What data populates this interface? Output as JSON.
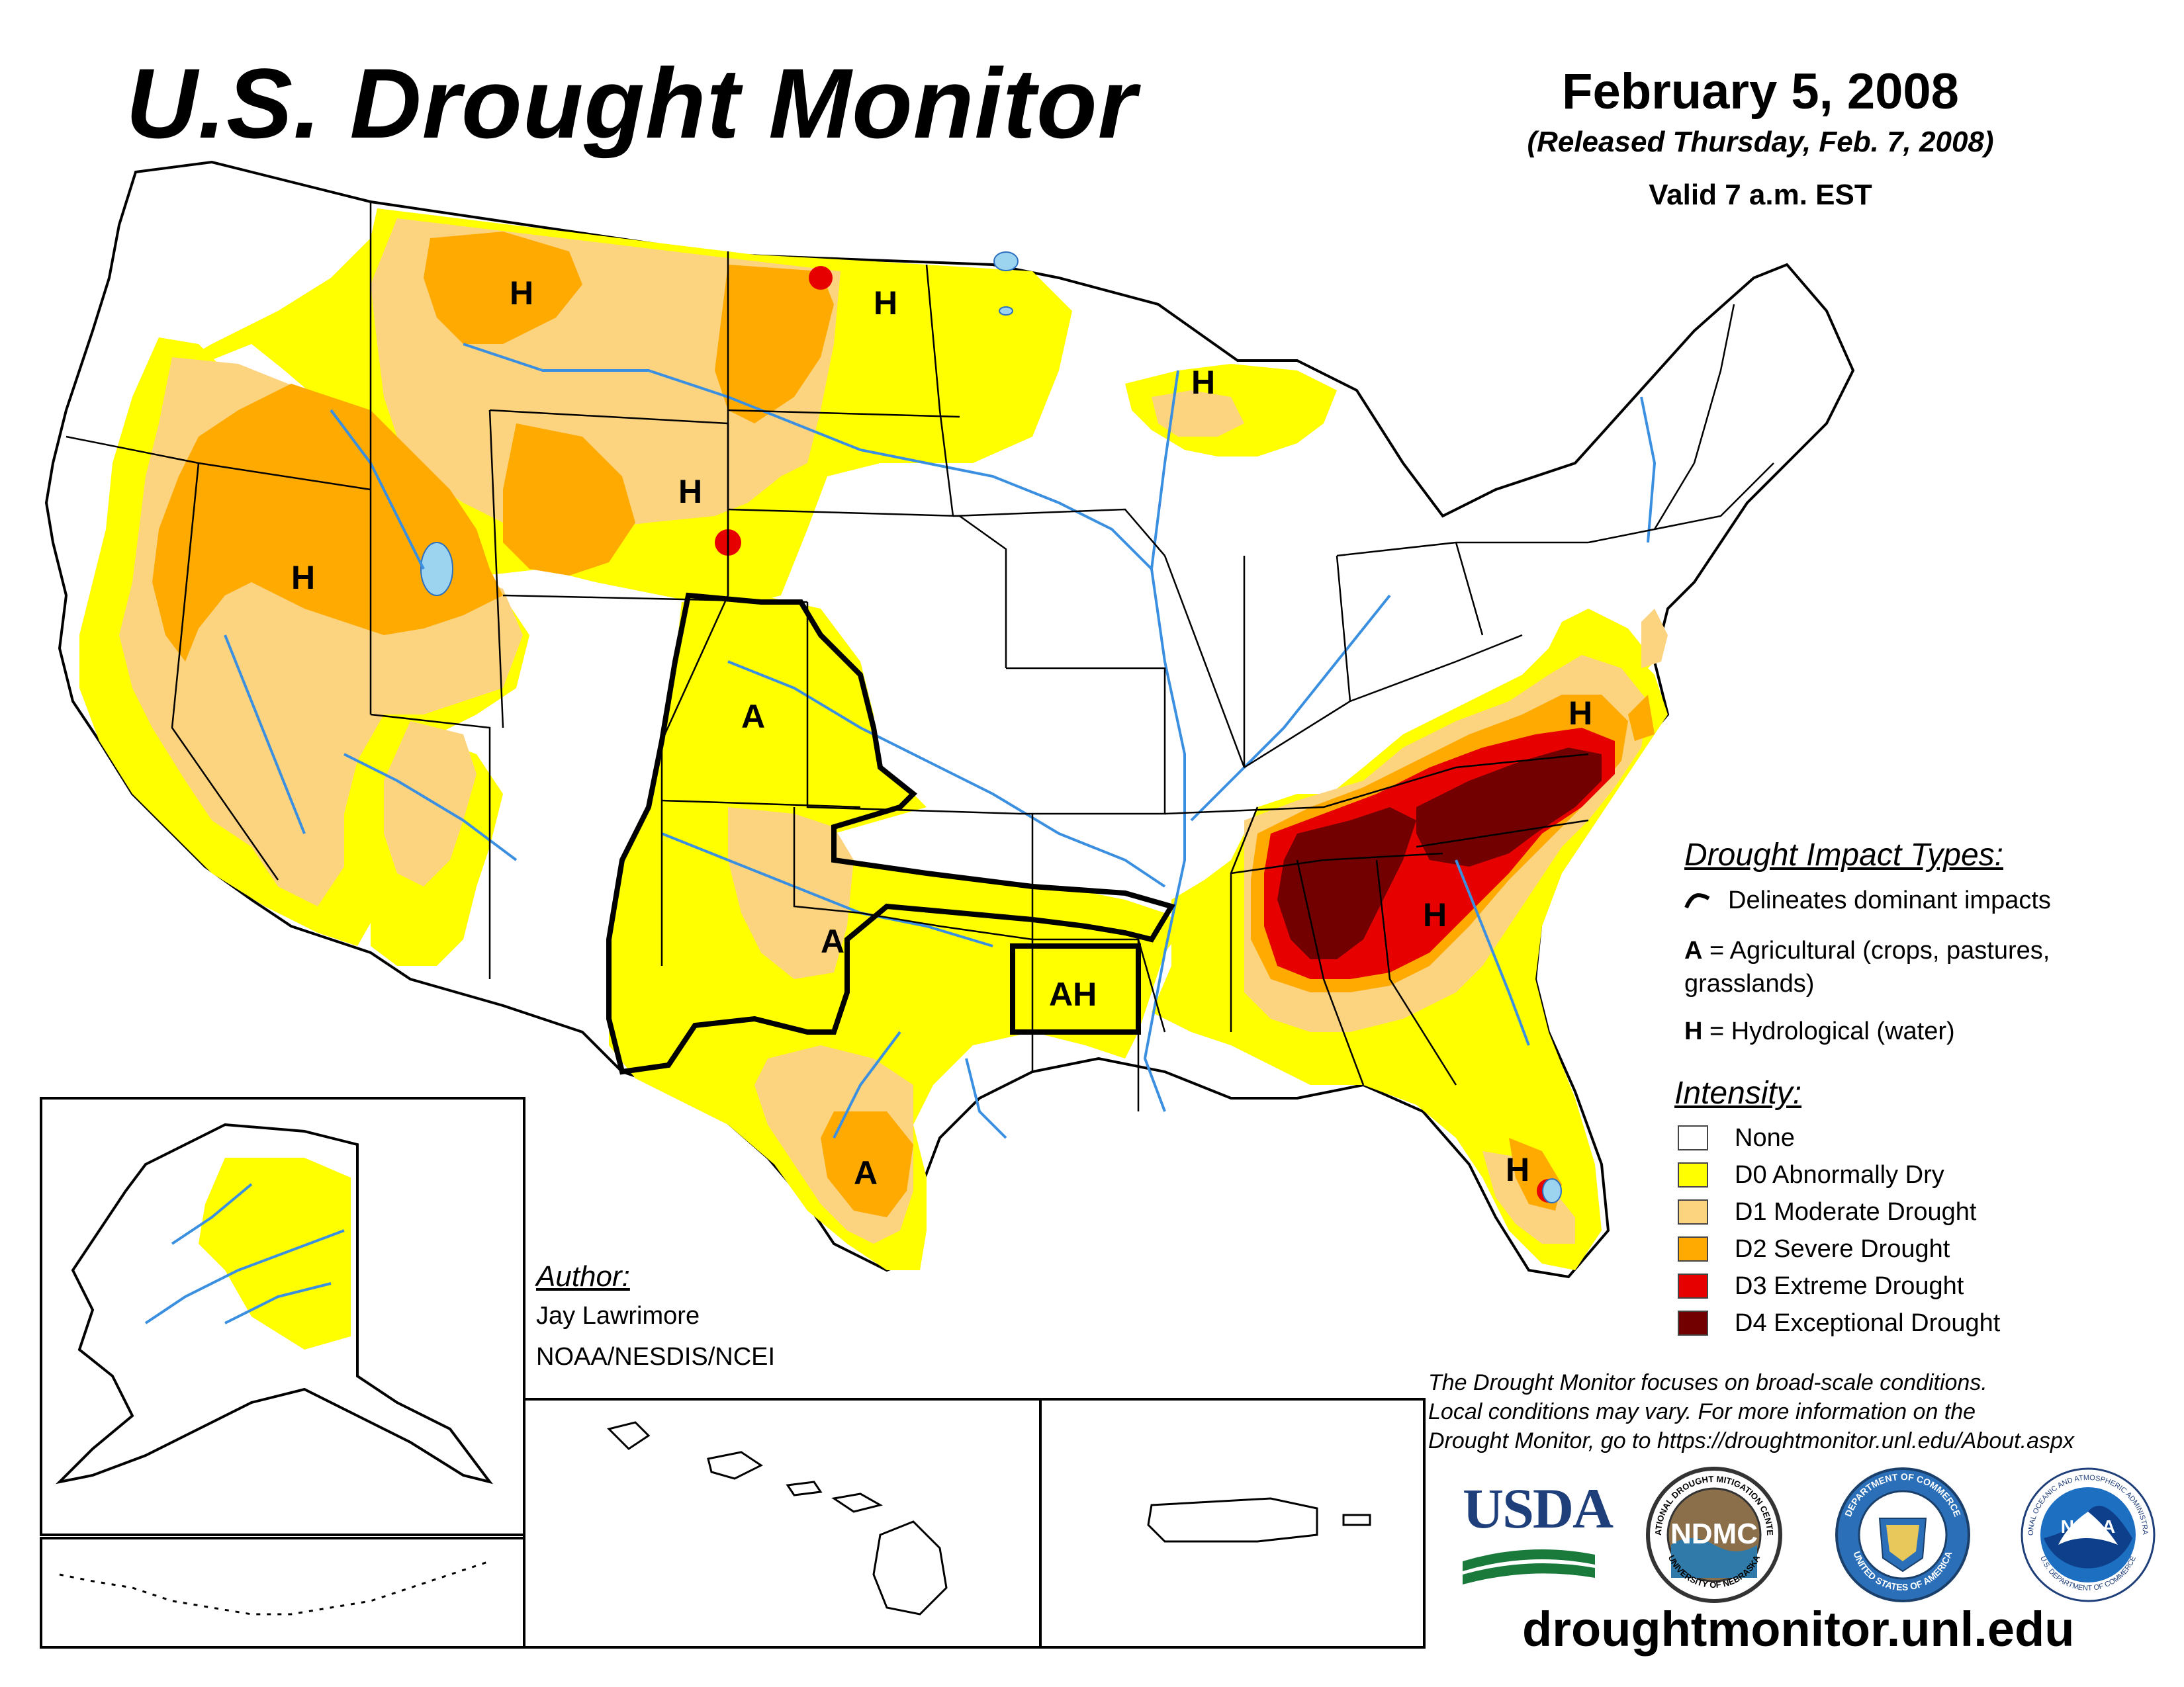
{
  "header": {
    "title": "U.S. Drought Monitor",
    "date": "February 5, 2008",
    "released": "(Released Thursday, Feb. 7, 2008)",
    "valid": "Valid 7 a.m. EST"
  },
  "map": {
    "region_labels": [
      {
        "id": "mt-h",
        "text": "H"
      },
      {
        "id": "nd-h",
        "text": "H"
      },
      {
        "id": "mi-h",
        "text": "H"
      },
      {
        "id": "wy-h",
        "text": "H"
      },
      {
        "id": "nv-h",
        "text": "H"
      },
      {
        "id": "co-a",
        "text": "A"
      },
      {
        "id": "tx-a1",
        "text": "A"
      },
      {
        "id": "tx-a2",
        "text": "A"
      },
      {
        "id": "ar-ah",
        "text": "AH"
      },
      {
        "id": "ga-h",
        "text": "H"
      },
      {
        "id": "va-h",
        "text": "H"
      },
      {
        "id": "fl-h",
        "text": "H"
      }
    ]
  },
  "legend": {
    "impact_title": "Drought Impact Types:",
    "impact_line": "Delineates dominant impacts",
    "impact_ag_key": "A",
    "impact_ag_text": "= Agricultural (crops, pastures, grasslands)",
    "impact_hyd_key": "H",
    "impact_hyd_text": "= Hydrological (water)",
    "intensity_title": "Intensity:",
    "intensity": [
      {
        "label": "None",
        "color": "#ffffff"
      },
      {
        "label": "D0 Abnormally Dry",
        "color": "#ffff00"
      },
      {
        "label": "D1 Moderate Drought",
        "color": "#fcd37f"
      },
      {
        "label": "D2 Severe Drought",
        "color": "#ffaa00"
      },
      {
        "label": "D3 Extreme Drought",
        "color": "#e60000"
      },
      {
        "label": "D4 Exceptional Drought",
        "color": "#730000"
      }
    ]
  },
  "author": {
    "title": "Author:",
    "name": "Jay Lawrimore",
    "org": "NOAA/NESDIS/NCEI"
  },
  "footer": {
    "disclaimer_1": "The Drought Monitor focuses on broad-scale conditions.",
    "disclaimer_2": "Local conditions may vary. For more information on the",
    "disclaimer_3": "Drought Monitor, go to https://droughtmonitor.unl.edu/About.aspx",
    "website": "droughtmonitor.unl.edu",
    "logos": {
      "usda": "USDA",
      "ndmc": "NDMC",
      "ndmc_ring_top": "NATIONAL DROUGHT MITIGATION CENTER",
      "ndmc_ring_bottom": "UNIVERSITY OF NEBRASKA",
      "commerce_ring_top": "DEPARTMENT OF COMMERCE",
      "commerce_ring_bottom": "UNITED STATES OF AMERICA",
      "noaa": "NOAA",
      "noaa_ring_top": "NATIONAL OCEANIC AND ATMOSPHERIC ADMINISTRATION",
      "noaa_ring_bottom": "U.S. DEPARTMENT OF COMMERCE"
    }
  },
  "colors": {
    "d0": "#ffff00",
    "d1": "#fcd37f",
    "d2": "#ffaa00",
    "d3": "#e60000",
    "d4": "#730000",
    "water": "#9cd4f0",
    "river": "#3b8fe0"
  }
}
